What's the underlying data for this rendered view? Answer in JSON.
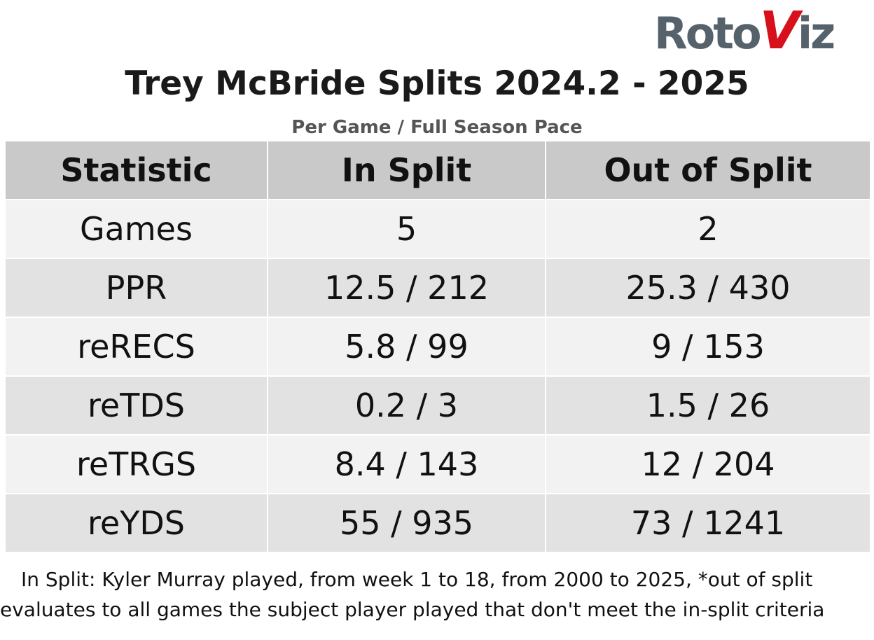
{
  "logo": {
    "parts": [
      "Roto",
      "V",
      "iz"
    ]
  },
  "title": "Trey McBride Splits 2024.2 - 2025",
  "subtitle": "Per Game / Full Season Pace",
  "table": {
    "header": [
      "Statistic",
      "In Split",
      "Out of Split"
    ],
    "rows": [
      [
        "Games",
        "5",
        "2"
      ],
      [
        "PPR",
        "12.5 / 212",
        "25.3 / 430"
      ],
      [
        "reRECS",
        "5.8 / 99",
        "9 / 153"
      ],
      [
        "reTDS",
        "0.2 / 3",
        "1.5 / 26"
      ],
      [
        "reTRGS",
        "8.4 / 143",
        "12 / 204"
      ],
      [
        "reYDS",
        "55 / 935",
        "73 / 1241"
      ]
    ]
  },
  "note": "In Split: Kyler Murray played, from week 1 to 18, from 2000 to 2025,  *out of split evaluates to all games the subject player played that don't meet the in-split criteria"
}
